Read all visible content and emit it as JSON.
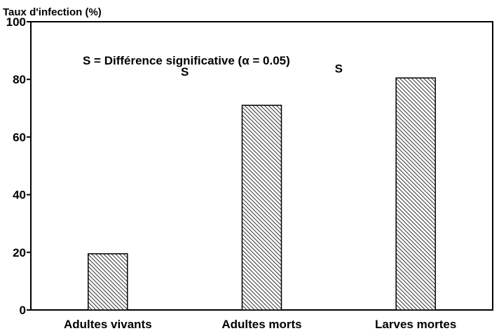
{
  "chart_data": {
    "type": "bar",
    "ylabel": "Taux d'infection (%)",
    "xlabel": "",
    "ylim": [
      0,
      100
    ],
    "yticks": [
      0,
      20,
      40,
      60,
      80,
      100
    ],
    "categories": [
      "Adultes vivants",
      "Adultes morts",
      "Larves mortes"
    ],
    "values": [
      19.5,
      71,
      80.5
    ],
    "bar_fill": "diagonal-hatch",
    "grid": false,
    "legend_note": "S = Différence significative (α = 0.05)",
    "significance_marks": [
      {
        "label": "S",
        "between": [
          "Adultes vivants",
          "Adultes morts"
        ]
      },
      {
        "label": "S",
        "between": [
          "Adultes morts",
          "Larves mortes"
        ]
      }
    ]
  }
}
